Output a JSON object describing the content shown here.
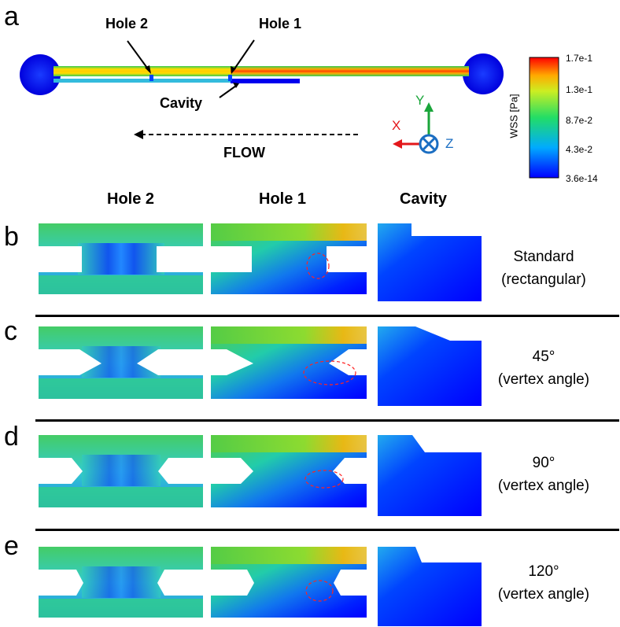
{
  "panels": {
    "a": "a",
    "b": "b",
    "c": "c",
    "d": "d",
    "e": "e"
  },
  "overview": {
    "hole2": "Hole 2",
    "hole1": "Hole 1",
    "cavity": "Cavity",
    "flow": "FLOW",
    "axes": {
      "x": "X",
      "y": "Y",
      "z": "Z"
    }
  },
  "colorbar": {
    "title": "WSS [Pa]",
    "ticks": [
      "1.7e-1",
      "1.3e-1",
      "8.7e-2",
      "4.3e-2",
      "3.6e-14"
    ]
  },
  "columns": [
    "Hole 2",
    "Hole 1",
    "Cavity"
  ],
  "rows": [
    {
      "letter": "b",
      "line1": "Standard",
      "line2": "(rectangular)"
    },
    {
      "letter": "c",
      "line1": "45°",
      "line2": "(vertex angle)"
    },
    {
      "letter": "d",
      "line1": "90°",
      "line2": "(vertex angle)"
    },
    {
      "letter": "e",
      "line1": "120°",
      "line2": "(vertex angle)"
    }
  ]
}
